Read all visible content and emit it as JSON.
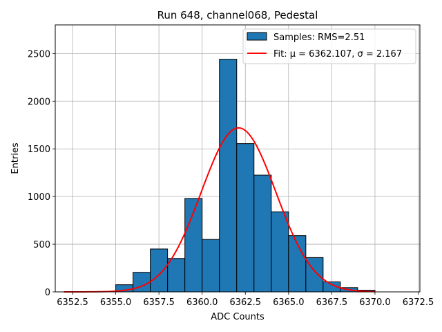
{
  "chart_data": {
    "type": "histogram",
    "title": "Run 648, channel068, Pedestal",
    "xlabel": "ADC Counts",
    "ylabel": "Entries",
    "xlim": [
      6351.5,
      6372.6
    ],
    "ylim": [
      0,
      2800
    ],
    "grid": true,
    "legend_placement": "upper-right",
    "xticks": [
      {
        "value": 6352.5,
        "label": "6352.5"
      },
      {
        "value": 6355.0,
        "label": "6355.0"
      },
      {
        "value": 6357.5,
        "label": "6357.5"
      },
      {
        "value": 6360.0,
        "label": "6360.0"
      },
      {
        "value": 6362.5,
        "label": "6362.5"
      },
      {
        "value": 6365.0,
        "label": "6365.0"
      },
      {
        "value": 6367.5,
        "label": "6367.5"
      },
      {
        "value": 6370.0,
        "label": "6370.0"
      },
      {
        "value": 6372.5,
        "label": "6372.5"
      }
    ],
    "yticks": [
      {
        "value": 0,
        "label": "0"
      },
      {
        "value": 500,
        "label": "500"
      },
      {
        "value": 1000,
        "label": "1000"
      },
      {
        "value": 1500,
        "label": "1500"
      },
      {
        "value": 2000,
        "label": "2000"
      },
      {
        "value": 2500,
        "label": "2500"
      }
    ],
    "histogram": {
      "name": "Samples: RMS=2.51",
      "color": "#1f77b4",
      "edgecolor": "#000000",
      "bins": [
        {
          "x0": 6355.0,
          "x1": 6356.0,
          "count": 75
        },
        {
          "x0": 6356.0,
          "x1": 6357.0,
          "count": 205
        },
        {
          "x0": 6357.0,
          "x1": 6358.0,
          "count": 450
        },
        {
          "x0": 6358.0,
          "x1": 6359.0,
          "count": 350
        },
        {
          "x0": 6359.0,
          "x1": 6360.0,
          "count": 980
        },
        {
          "x0": 6360.0,
          "x1": 6361.0,
          "count": 550
        },
        {
          "x0": 6361.0,
          "x1": 6362.0,
          "count": 2440
        },
        {
          "x0": 6362.0,
          "x1": 6363.0,
          "count": 1555
        },
        {
          "x0": 6363.0,
          "x1": 6364.0,
          "count": 1225
        },
        {
          "x0": 6364.0,
          "x1": 6365.0,
          "count": 840
        },
        {
          "x0": 6365.0,
          "x1": 6366.0,
          "count": 590
        },
        {
          "x0": 6366.0,
          "x1": 6367.0,
          "count": 360
        },
        {
          "x0": 6367.0,
          "x1": 6368.0,
          "count": 105
        },
        {
          "x0": 6368.0,
          "x1": 6369.0,
          "count": 45
        },
        {
          "x0": 6369.0,
          "x1": 6370.0,
          "count": 18
        }
      ]
    },
    "fit": {
      "name": "Fit: μ = 6362.107, σ = 2.167",
      "color": "#ff0000",
      "mu": 6362.107,
      "sigma": 2.167,
      "amplitude": 1720,
      "x_range": [
        6352.0,
        6370.0
      ]
    }
  }
}
